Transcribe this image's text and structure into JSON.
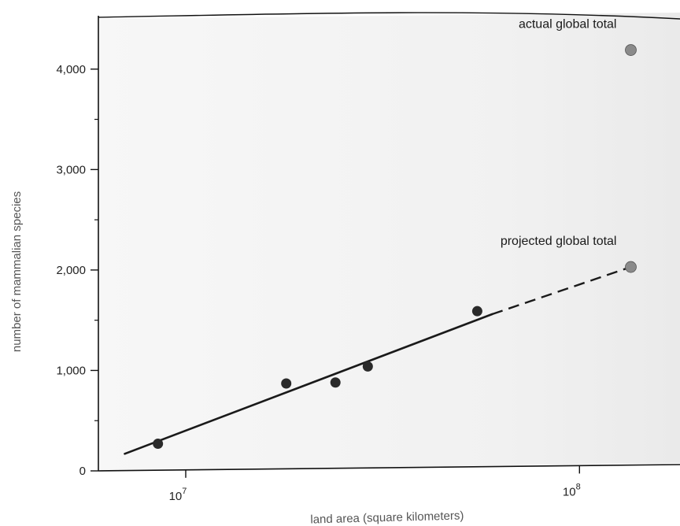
{
  "chart_data": {
    "type": "scatter",
    "title": "",
    "xlabel": "land area (square kilometers)",
    "ylabel": "number of mammalian species",
    "x_scale": "log",
    "xlim": [
      6000000,
      180000000
    ],
    "ylim": [
      0,
      4500
    ],
    "x_ticks": [
      {
        "value": 10000000,
        "base": "10",
        "exp": "7"
      },
      {
        "value": 100000000,
        "base": "10",
        "exp": "8"
      }
    ],
    "y_ticks": [
      {
        "value": 0,
        "label": "0"
      },
      {
        "value": 1000,
        "label": "1,000"
      },
      {
        "value": 2000,
        "label": "2,000"
      },
      {
        "value": 3000,
        "label": "3,000"
      },
      {
        "value": 4000,
        "label": "4,000"
      }
    ],
    "y_minor_ticks": [
      500,
      1500,
      2500,
      3500
    ],
    "grid": false,
    "series": [
      {
        "points": [
          {
            "x": 8500000,
            "y": 270
          },
          {
            "x": 18000000,
            "y": 870
          },
          {
            "x": 24000000,
            "y": 880
          },
          {
            "x": 29000000,
            "y": 1040
          },
          {
            "x": 55000000,
            "y": 1590
          }
        ]
      },
      {
        "points": [
          {
            "x": 135000000,
            "y": 4190
          },
          {
            "x": 135000000,
            "y": 2030
          }
        ]
      }
    ],
    "fit_line": {
      "solid": [
        [
          7000000,
          170
        ],
        [
          60000000,
          1560
        ]
      ],
      "dashed": [
        [
          60000000,
          1560
        ],
        [
          135000000,
          2030
        ]
      ]
    },
    "annotations": [
      {
        "text": "actual global total",
        "x": 135000000,
        "y": 4190
      },
      {
        "text": "projected global total",
        "x": 135000000,
        "y": 2030
      }
    ],
    "colors": {
      "points": "#2a2a2a",
      "global_points": "#8a8a8a",
      "line": "#1a1a1a",
      "axis": "#111111",
      "background": "#f3f3f3"
    }
  }
}
